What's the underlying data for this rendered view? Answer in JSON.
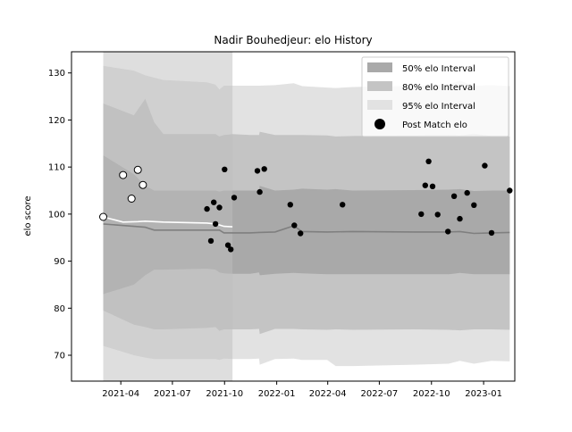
{
  "chart_data": {
    "type": "line",
    "title": "Nadir Bouhedjeur: elo History",
    "xlabel": "",
    "ylabel": "elo score",
    "xlim": [
      "2021-01-04",
      "2023-02-25"
    ],
    "ylim": [
      64.5,
      134.5
    ],
    "x_ticks": [
      "2021-04",
      "2021-07",
      "2021-10",
      "2022-01",
      "2022-04",
      "2022-07",
      "2022-10",
      "2023-01"
    ],
    "y_ticks": [
      70,
      80,
      90,
      100,
      110,
      120,
      130
    ],
    "grid": false,
    "legend_position": "upper right",
    "legend": [
      {
        "label": "50% elo Interval",
        "kind": "band50"
      },
      {
        "label": "80% elo Interval",
        "kind": "band80"
      },
      {
        "label": "95% elo Interval",
        "kind": "band95"
      },
      {
        "label": "Post Match elo",
        "kind": "dot"
      }
    ],
    "colors": {
      "band50": "#a9a9a9",
      "band80": "#c4c4c4",
      "band95": "#e2e2e2",
      "shaded_period": "#bdbdbd",
      "post_match_line": "#ffffff",
      "median_line": "#7f7f7f",
      "filled_dot": "#000000",
      "hollow_dot_fill": "#ffffff"
    },
    "shaded_period": {
      "start": "2021-03-01",
      "end": "2021-10-15"
    },
    "median_series": {
      "name": "median elo",
      "x": [
        "2021-03-01",
        "2021-04-24",
        "2021-05-14",
        "2021-05-30",
        "2021-06-15",
        "2021-08-31",
        "2021-09-22",
        "2021-09-30",
        "2021-10-15",
        "2021-11-15",
        "2021-12-01",
        "2021-12-29",
        "2022-01-31",
        "2022-02-15",
        "2022-03-31",
        "2022-05-15",
        "2022-08-31",
        "2022-10-31",
        "2022-11-20",
        "2022-12-15",
        "2023-01-15",
        "2023-02-16"
      ],
      "y": [
        97.9,
        97.4,
        97.2,
        96.6,
        96.6,
        96.6,
        96.6,
        96.0,
        96.0,
        96.0,
        96.1,
        96.2,
        97.5,
        96.3,
        96.2,
        96.3,
        96.2,
        96.2,
        96.3,
        95.9,
        96.0,
        96.1
      ]
    },
    "post_match_series": {
      "name": "Post Match elo",
      "x": [
        "2021-03-01",
        "2021-04-05",
        "2021-05-01",
        "2021-05-14",
        "2021-06-15",
        "2021-08-31",
        "2021-09-15",
        "2021-09-22",
        "2021-09-30",
        "2021-10-15"
      ],
      "y": [
        99.4,
        98.3,
        98.4,
        98.5,
        98.3,
        98.1,
        97.9,
        97.7,
        97.4,
        97.3
      ]
    },
    "bands": {
      "x": [
        "2021-03-01",
        "2021-04-24",
        "2021-05-14",
        "2021-05-30",
        "2021-06-15",
        "2021-08-31",
        "2021-09-15",
        "2021-09-22",
        "2021-09-30",
        "2021-10-15",
        "2021-11-15",
        "2021-12-01",
        "2021-12-02",
        "2021-12-29",
        "2022-01-31",
        "2022-02-15",
        "2022-03-31",
        "2022-04-15",
        "2022-05-15",
        "2022-08-31",
        "2022-10-31",
        "2022-11-20",
        "2022-12-15",
        "2023-01-15",
        "2023-02-16"
      ],
      "p50_lo": [
        83.0,
        85.0,
        87.0,
        88.2,
        88.2,
        88.4,
        88.2,
        87.6,
        87.4,
        87.3,
        87.3,
        87.6,
        87.0,
        87.3,
        87.5,
        87.4,
        87.2,
        87.2,
        87.2,
        87.2,
        87.2,
        87.5,
        87.2,
        87.2,
        87.2
      ],
      "p50_hi": [
        112.5,
        108.5,
        106.0,
        105.0,
        105.0,
        105.0,
        105.0,
        104.8,
        105.0,
        105.0,
        105.0,
        105.0,
        106.0,
        105.0,
        105.2,
        105.4,
        105.2,
        105.3,
        105.0,
        105.1,
        105.2,
        105.3,
        104.9,
        105.0,
        105.0
      ],
      "p80_lo": [
        79.5,
        76.5,
        76.0,
        75.5,
        75.5,
        75.8,
        76.0,
        75.2,
        75.5,
        75.5,
        75.5,
        75.6,
        74.5,
        75.6,
        75.6,
        75.5,
        75.4,
        75.5,
        75.4,
        75.5,
        75.4,
        75.3,
        75.5,
        75.5,
        75.4
      ],
      "p80_hi": [
        123.5,
        121.0,
        124.5,
        119.5,
        117.0,
        117.0,
        117.0,
        116.5,
        116.8,
        117.0,
        116.8,
        116.8,
        117.5,
        116.8,
        116.8,
        116.8,
        116.7,
        116.5,
        116.6,
        116.7,
        116.8,
        116.7,
        117.1,
        116.6,
        116.5
      ]
    },
    "band95_lower": {
      "x": [
        "2021-03-01",
        "2021-04-24",
        "2021-05-14",
        "2021-05-30",
        "2021-06-15",
        "2021-08-31",
        "2021-09-15",
        "2021-09-22",
        "2021-09-30",
        "2021-10-15",
        "2021-11-15",
        "2021-12-01",
        "2021-12-02",
        "2021-12-29",
        "2022-01-31",
        "2022-02-15",
        "2022-03-31",
        "2022-04-15",
        "2022-05-15",
        "2022-08-31",
        "2022-10-31",
        "2022-11-20",
        "2022-12-15",
        "2023-01-15",
        "2023-02-16"
      ],
      "y": [
        72.0,
        70.0,
        69.5,
        69.2,
        69.2,
        69.2,
        69.2,
        69.0,
        69.3,
        69.2,
        69.2,
        69.3,
        68.0,
        69.2,
        69.3,
        69.0,
        69.0,
        67.7,
        67.7,
        68.0,
        68.2,
        68.8,
        68.2,
        68.8,
        68.7
      ]
    },
    "band95_upper": {
      "x": [
        "2021-03-01",
        "2021-04-24",
        "2021-05-14",
        "2021-05-30",
        "2021-06-15",
        "2021-08-31",
        "2021-09-15",
        "2021-09-22",
        "2021-09-30",
        "2021-10-15",
        "2021-11-15",
        "2021-12-01",
        "2021-12-29",
        "2022-01-31",
        "2022-02-15",
        "2022-03-31",
        "2022-04-15",
        "2022-05-15",
        "2022-08-31",
        "2022-10-31",
        "2022-11-20",
        "2022-12-15",
        "2023-01-15",
        "2023-02-16"
      ],
      "y": [
        131.5,
        130.5,
        129.5,
        129.0,
        128.5,
        128.0,
        127.5,
        126.5,
        127.3,
        127.3,
        127.3,
        127.3,
        127.4,
        127.8,
        127.2,
        126.9,
        126.8,
        127.0,
        127.3,
        127.5,
        128.4,
        127.3,
        127.4,
        127.2
      ]
    },
    "match_points": {
      "x": [
        "2021-03-01",
        "2021-04-05",
        "2021-04-20",
        "2021-05-01",
        "2021-05-10",
        "2021-08-31",
        "2021-09-07",
        "2021-09-12",
        "2021-09-15",
        "2021-09-22",
        "2021-10-01",
        "2021-10-07",
        "2021-10-12",
        "2021-10-18",
        "2021-11-28",
        "2021-12-02",
        "2021-12-10",
        "2022-01-25",
        "2022-02-01",
        "2022-02-12",
        "2022-04-27",
        "2022-09-13",
        "2022-09-20",
        "2022-09-26",
        "2022-10-03",
        "2022-10-12",
        "2022-10-30",
        "2022-11-10",
        "2022-11-20",
        "2022-12-03",
        "2022-12-15",
        "2023-01-03",
        "2023-01-15",
        "2023-02-16"
      ],
      "y": [
        99.4,
        108.3,
        103.3,
        109.4,
        106.2,
        101.1,
        94.3,
        102.5,
        97.9,
        101.4,
        109.5,
        93.4,
        92.5,
        103.5,
        109.2,
        104.7,
        109.6,
        102.0,
        97.6,
        95.9,
        102.0,
        100.0,
        106.1,
        111.2,
        105.9,
        99.9,
        96.3,
        103.8,
        99.0,
        104.5,
        101.9,
        110.3,
        96.0,
        105.0
      ],
      "hollow": [
        true,
        true,
        true,
        true,
        true,
        false,
        false,
        false,
        false,
        false,
        false,
        false,
        false,
        false,
        false,
        false,
        false,
        false,
        false,
        false,
        false,
        false,
        false,
        false,
        false,
        false,
        false,
        false,
        false,
        false,
        false,
        false,
        false,
        false
      ]
    }
  }
}
